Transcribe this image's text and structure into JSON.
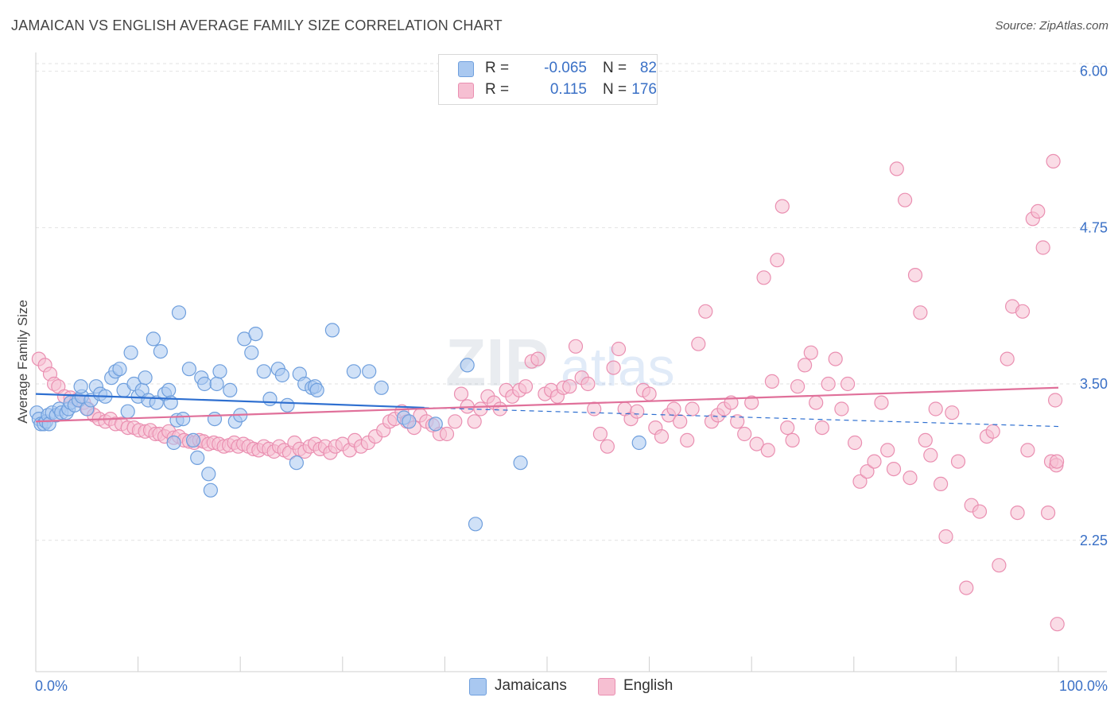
{
  "title": "JAMAICAN VS ENGLISH AVERAGE FAMILY SIZE CORRELATION CHART",
  "source": "Source: ZipAtlas.com",
  "watermark": {
    "zip": "ZIP",
    "atlas": "atlas"
  },
  "legend": {
    "rows": [
      {
        "r_label": "R =",
        "r_value": "-0.065",
        "n_label": "N =",
        "n_value": "82"
      },
      {
        "r_label": "R =",
        "r_value": "0.115",
        "n_label": "N =",
        "n_value": "176"
      }
    ]
  },
  "chart_data": {
    "type": "scatter",
    "title": "JAMAICAN VS ENGLISH AVERAGE FAMILY SIZE CORRELATION CHART",
    "xlabel": "",
    "ylabel": "Average Family Size",
    "xlim": [
      0,
      100
    ],
    "ylim": [
      1.2,
      6.15
    ],
    "x_tick_labels": [
      "0.0%",
      "100.0%"
    ],
    "y_ticks": [
      2.25,
      3.5,
      4.75,
      6.0
    ],
    "y_tick_labels": [
      "2.25",
      "3.50",
      "4.75",
      "6.00"
    ],
    "legend_position": "top-center",
    "colors": {
      "blue_fill": "#a9c8f0",
      "blue_stroke": "#6f9fdd",
      "blue_line": "#2e6fd0",
      "pink_fill": "#f6bfd2",
      "pink_stroke": "#ea8fb1",
      "pink_line": "#e0709a",
      "axis_label": "#3a70c6"
    },
    "series": [
      {
        "name": "Jamaicans",
        "r": -0.065,
        "n": 82,
        "trend": {
          "x": [
            0,
            38,
            100
          ],
          "y": [
            3.42,
            3.31,
            3.16
          ],
          "solid_until_x": 38
        },
        "points": [
          [
            0.1,
            3.27
          ],
          [
            0.3,
            3.22
          ],
          [
            0.5,
            3.18
          ],
          [
            0.8,
            3.18
          ],
          [
            1.0,
            3.2
          ],
          [
            1.2,
            3.25
          ],
          [
            1.3,
            3.18
          ],
          [
            1.6,
            3.27
          ],
          [
            2.0,
            3.25
          ],
          [
            2.3,
            3.3
          ],
          [
            2.5,
            3.27
          ],
          [
            3.0,
            3.27
          ],
          [
            3.2,
            3.3
          ],
          [
            3.4,
            3.35
          ],
          [
            3.8,
            3.33
          ],
          [
            4.2,
            3.37
          ],
          [
            4.5,
            3.4
          ],
          [
            5.0,
            3.3
          ],
          [
            4.4,
            3.48
          ],
          [
            5.4,
            3.37
          ],
          [
            5.9,
            3.48
          ],
          [
            6.3,
            3.42
          ],
          [
            6.8,
            3.4
          ],
          [
            7.4,
            3.55
          ],
          [
            7.8,
            3.6
          ],
          [
            8.2,
            3.62
          ],
          [
            8.6,
            3.45
          ],
          [
            9.0,
            3.28
          ],
          [
            9.3,
            3.75
          ],
          [
            9.6,
            3.5
          ],
          [
            10.0,
            3.4
          ],
          [
            10.4,
            3.45
          ],
          [
            10.7,
            3.55
          ],
          [
            11.0,
            3.37
          ],
          [
            11.5,
            3.86
          ],
          [
            11.8,
            3.35
          ],
          [
            12.2,
            3.76
          ],
          [
            12.6,
            3.42
          ],
          [
            13.0,
            3.45
          ],
          [
            13.2,
            3.35
          ],
          [
            13.5,
            3.03
          ],
          [
            13.8,
            3.21
          ],
          [
            14.0,
            4.07
          ],
          [
            14.4,
            3.22
          ],
          [
            15.0,
            3.62
          ],
          [
            15.4,
            3.05
          ],
          [
            15.8,
            2.91
          ],
          [
            16.2,
            3.55
          ],
          [
            16.5,
            3.5
          ],
          [
            16.9,
            2.78
          ],
          [
            17.1,
            2.65
          ],
          [
            17.5,
            3.22
          ],
          [
            17.7,
            3.5
          ],
          [
            18.0,
            3.6
          ],
          [
            19.0,
            3.45
          ],
          [
            19.5,
            3.2
          ],
          [
            20.0,
            3.25
          ],
          [
            20.4,
            3.86
          ],
          [
            21.1,
            3.75
          ],
          [
            21.5,
            3.9
          ],
          [
            22.3,
            3.6
          ],
          [
            22.9,
            3.38
          ],
          [
            23.7,
            3.62
          ],
          [
            24.1,
            3.57
          ],
          [
            24.6,
            3.33
          ],
          [
            25.5,
            2.87
          ],
          [
            25.8,
            3.58
          ],
          [
            26.3,
            3.5
          ],
          [
            27.0,
            3.47
          ],
          [
            27.3,
            3.48
          ],
          [
            27.5,
            3.45
          ],
          [
            29.0,
            3.93
          ],
          [
            31.1,
            3.6
          ],
          [
            32.6,
            3.6
          ],
          [
            33.8,
            3.47
          ],
          [
            36.0,
            3.23
          ],
          [
            36.5,
            3.2
          ],
          [
            39.1,
            3.18
          ],
          [
            42.2,
            3.65
          ],
          [
            43.0,
            2.38
          ],
          [
            47.4,
            2.87
          ],
          [
            59.0,
            3.03
          ]
        ]
      },
      {
        "name": "English",
        "r": 0.115,
        "n": 176,
        "trend": {
          "x": [
            0,
            100
          ],
          "y": [
            3.2,
            3.47
          ]
        },
        "points": [
          [
            0.3,
            3.7
          ],
          [
            0.9,
            3.65
          ],
          [
            1.4,
            3.58
          ],
          [
            1.8,
            3.5
          ],
          [
            2.2,
            3.48
          ],
          [
            2.8,
            3.4
          ],
          [
            3.4,
            3.39
          ],
          [
            4.0,
            3.37
          ],
          [
            4.7,
            3.35
          ],
          [
            5.1,
            3.3
          ],
          [
            5.7,
            3.25
          ],
          [
            6.2,
            3.22
          ],
          [
            6.8,
            3.2
          ],
          [
            7.3,
            3.22
          ],
          [
            7.8,
            3.18
          ],
          [
            8.4,
            3.18
          ],
          [
            9.0,
            3.15
          ],
          [
            9.6,
            3.15
          ],
          [
            10.1,
            3.13
          ],
          [
            10.7,
            3.12
          ],
          [
            11.2,
            3.13
          ],
          [
            11.7,
            3.1
          ],
          [
            12.1,
            3.1
          ],
          [
            12.6,
            3.08
          ],
          [
            13.0,
            3.12
          ],
          [
            13.5,
            3.07
          ],
          [
            14.0,
            3.08
          ],
          [
            14.5,
            3.05
          ],
          [
            15.0,
            3.04
          ],
          [
            15.5,
            3.03
          ],
          [
            16.0,
            3.05
          ],
          [
            16.4,
            3.04
          ],
          [
            16.9,
            3.02
          ],
          [
            17.4,
            3.03
          ],
          [
            17.9,
            3.02
          ],
          [
            18.4,
            3.0
          ],
          [
            18.9,
            3.01
          ],
          [
            19.4,
            3.03
          ],
          [
            19.8,
            3.0
          ],
          [
            20.3,
            3.02
          ],
          [
            20.8,
            3.0
          ],
          [
            21.3,
            2.98
          ],
          [
            21.8,
            2.97
          ],
          [
            22.3,
            3.0
          ],
          [
            22.8,
            2.98
          ],
          [
            23.3,
            2.96
          ],
          [
            23.8,
            3.0
          ],
          [
            24.3,
            2.97
          ],
          [
            24.8,
            2.95
          ],
          [
            25.3,
            3.03
          ],
          [
            25.8,
            2.98
          ],
          [
            26.3,
            2.96
          ],
          [
            26.8,
            3.0
          ],
          [
            27.3,
            3.02
          ],
          [
            27.8,
            2.98
          ],
          [
            28.3,
            3.0
          ],
          [
            28.8,
            2.95
          ],
          [
            29.3,
            3.0
          ],
          [
            30.0,
            3.02
          ],
          [
            30.7,
            2.97
          ],
          [
            31.2,
            3.05
          ],
          [
            31.8,
            3.0
          ],
          [
            32.5,
            3.03
          ],
          [
            33.2,
            3.08
          ],
          [
            34.0,
            3.13
          ],
          [
            34.6,
            3.2
          ],
          [
            35.1,
            3.22
          ],
          [
            35.8,
            3.28
          ],
          [
            36.3,
            3.2
          ],
          [
            37.0,
            3.15
          ],
          [
            37.6,
            3.25
          ],
          [
            38.2,
            3.2
          ],
          [
            38.8,
            3.17
          ],
          [
            39.5,
            3.1
          ],
          [
            40.2,
            3.1
          ],
          [
            41.0,
            3.2
          ],
          [
            41.6,
            3.42
          ],
          [
            42.2,
            3.32
          ],
          [
            42.9,
            3.2
          ],
          [
            43.5,
            3.3
          ],
          [
            44.2,
            3.4
          ],
          [
            44.8,
            3.35
          ],
          [
            45.4,
            3.3
          ],
          [
            46.0,
            3.45
          ],
          [
            46.6,
            3.4
          ],
          [
            47.3,
            3.45
          ],
          [
            47.9,
            3.48
          ],
          [
            48.5,
            3.68
          ],
          [
            49.1,
            3.7
          ],
          [
            49.8,
            3.42
          ],
          [
            50.4,
            3.45
          ],
          [
            51.0,
            3.4
          ],
          [
            51.6,
            3.47
          ],
          [
            52.2,
            3.48
          ],
          [
            52.8,
            3.8
          ],
          [
            53.4,
            3.55
          ],
          [
            54.0,
            3.5
          ],
          [
            54.6,
            3.3
          ],
          [
            55.2,
            3.1
          ],
          [
            55.9,
            3.0
          ],
          [
            56.5,
            3.63
          ],
          [
            57.0,
            3.78
          ],
          [
            57.6,
            3.3
          ],
          [
            58.2,
            3.22
          ],
          [
            58.8,
            3.28
          ],
          [
            59.4,
            3.45
          ],
          [
            60.0,
            3.42
          ],
          [
            60.6,
            3.15
          ],
          [
            61.2,
            3.08
          ],
          [
            61.9,
            3.25
          ],
          [
            62.4,
            3.3
          ],
          [
            63.0,
            3.2
          ],
          [
            63.7,
            3.05
          ],
          [
            64.2,
            3.3
          ],
          [
            64.8,
            3.82
          ],
          [
            65.5,
            4.08
          ],
          [
            66.1,
            3.2
          ],
          [
            66.7,
            3.25
          ],
          [
            67.3,
            3.3
          ],
          [
            68.0,
            3.35
          ],
          [
            68.6,
            3.2
          ],
          [
            69.3,
            3.1
          ],
          [
            70.0,
            3.35
          ],
          [
            70.5,
            3.02
          ],
          [
            71.2,
            4.35
          ],
          [
            71.6,
            2.97
          ],
          [
            72.0,
            3.52
          ],
          [
            72.5,
            4.49
          ],
          [
            73.0,
            4.92
          ],
          [
            73.5,
            3.15
          ],
          [
            74.0,
            3.05
          ],
          [
            74.5,
            3.48
          ],
          [
            75.2,
            3.65
          ],
          [
            75.8,
            3.75
          ],
          [
            76.3,
            3.35
          ],
          [
            76.9,
            3.15
          ],
          [
            77.5,
            3.5
          ],
          [
            78.2,
            3.7
          ],
          [
            78.8,
            3.3
          ],
          [
            79.4,
            3.5
          ],
          [
            80.1,
            3.03
          ],
          [
            80.6,
            2.72
          ],
          [
            81.3,
            2.8
          ],
          [
            82.0,
            2.88
          ],
          [
            82.7,
            3.35
          ],
          [
            83.3,
            2.97
          ],
          [
            83.9,
            2.82
          ],
          [
            84.2,
            5.22
          ],
          [
            85.0,
            4.97
          ],
          [
            85.5,
            2.75
          ],
          [
            86.0,
            4.37
          ],
          [
            86.5,
            4.07
          ],
          [
            87.0,
            3.05
          ],
          [
            87.5,
            2.93
          ],
          [
            88.0,
            3.3
          ],
          [
            88.5,
            2.7
          ],
          [
            89.0,
            2.28
          ],
          [
            89.6,
            3.27
          ],
          [
            90.2,
            2.88
          ],
          [
            91.0,
            1.87
          ],
          [
            91.5,
            2.53
          ],
          [
            92.3,
            2.48
          ],
          [
            93.0,
            3.08
          ],
          [
            93.6,
            3.12
          ],
          [
            94.2,
            2.05
          ],
          [
            95.0,
            3.7
          ],
          [
            95.5,
            4.12
          ],
          [
            96.0,
            2.47
          ],
          [
            96.5,
            4.08
          ],
          [
            97.0,
            2.97
          ],
          [
            97.5,
            4.82
          ],
          [
            98.0,
            4.88
          ],
          [
            98.5,
            4.59
          ],
          [
            99.0,
            2.47
          ],
          [
            99.3,
            2.88
          ],
          [
            99.5,
            5.28
          ],
          [
            99.7,
            3.37
          ],
          [
            99.8,
            2.85
          ],
          [
            99.85,
            2.88
          ],
          [
            99.9,
            1.58
          ]
        ]
      }
    ]
  },
  "bottom_legend": [
    {
      "label": "Jamaicans"
    },
    {
      "label": "English"
    }
  ]
}
